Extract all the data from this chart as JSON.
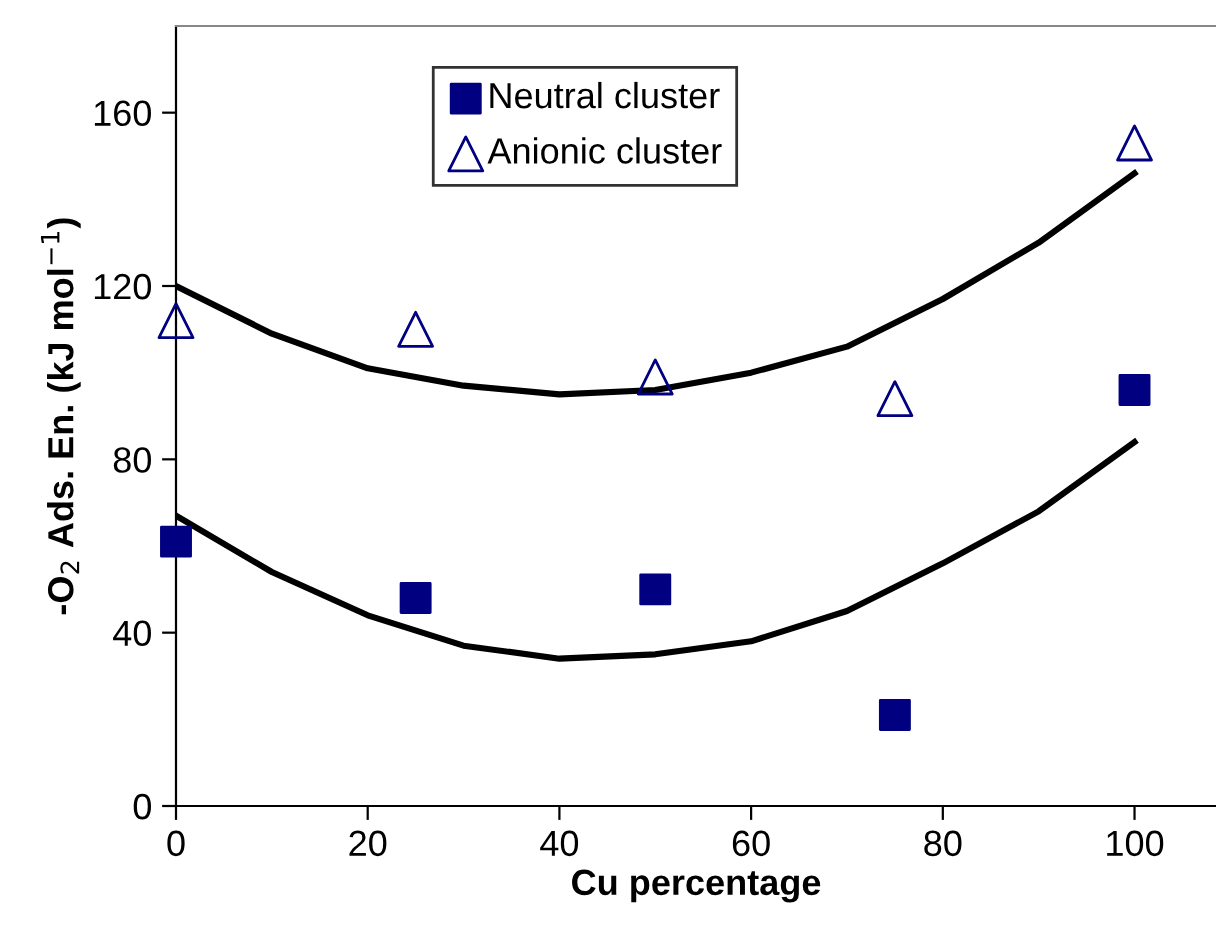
{
  "chart_data": {
    "type": "scatter",
    "xlabel": "Cu percentage",
    "ylabel": "-O$_{2}$ Ads. En. (kJ mol$^{−1}$)",
    "xlim": [
      0,
      108.5
    ],
    "xticks": [
      0,
      20,
      40,
      60,
      80,
      100
    ],
    "ylim": [
      0,
      180
    ],
    "yticks": [
      0,
      40,
      80,
      120,
      160
    ],
    "grid": false,
    "legend": "top left",
    "series": [
      {
        "name": "Neutral cluster",
        "marker": "square",
        "color": "#000080",
        "x": [
          0,
          25,
          50,
          75,
          100
        ],
        "values": [
          61,
          48,
          50,
          21,
          96
        ]
      },
      {
        "name": "Anionic cluster",
        "marker": "triangle",
        "color": "#000080",
        "x": [
          0,
          25,
          50,
          75,
          100
        ],
        "values": [
          112,
          110,
          99,
          94,
          153
        ]
      },
      {
        "type": "line",
        "color": "#000000",
        "line_style": "solid",
        "x": [
          0,
          10,
          20,
          30,
          40,
          50,
          60,
          70,
          80,
          90,
          100
        ],
        "values": [
          120,
          109,
          101,
          97,
          95,
          96,
          100,
          106,
          117,
          130,
          146
        ]
      },
      {
        "type": "line",
        "color": "#000000",
        "line_style": "solid",
        "x": [
          0,
          10,
          20,
          30,
          40,
          50,
          60,
          70,
          80,
          90,
          100
        ],
        "values": [
          67,
          54,
          44,
          37,
          34,
          35,
          38,
          45,
          56,
          68,
          84
        ]
      }
    ]
  }
}
